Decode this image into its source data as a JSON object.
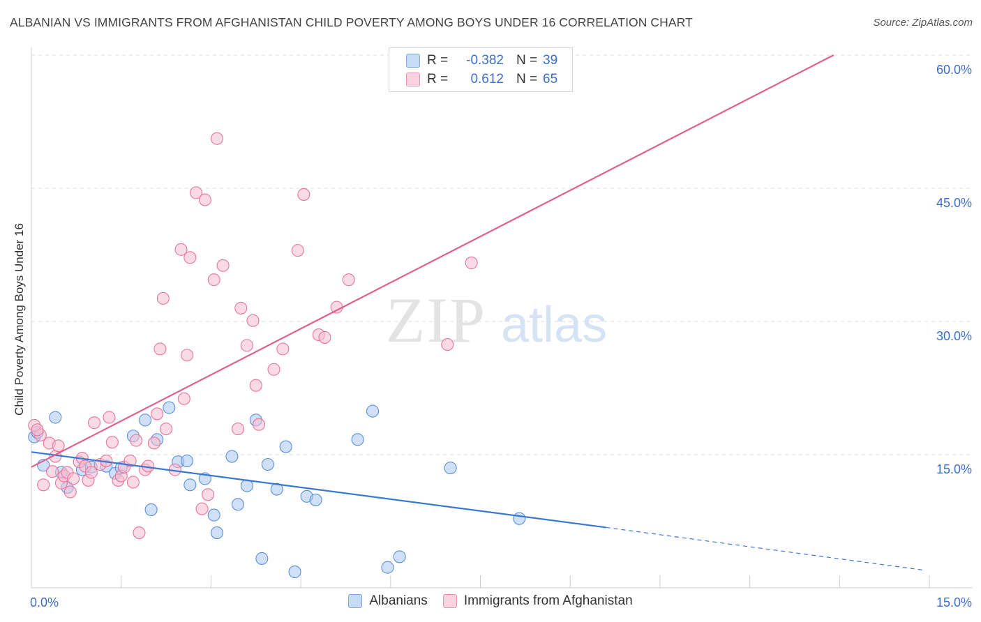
{
  "title": "ALBANIAN VS IMMIGRANTS FROM AFGHANISTAN CHILD POVERTY AMONG BOYS UNDER 16 CORRELATION CHART",
  "source": "Source: ZipAtlas.com",
  "watermark": {
    "zip": "ZIP",
    "atlas": "atlas"
  },
  "stats": [
    {
      "r_label": "R =",
      "r_value": "-0.382",
      "n_label": "N =",
      "n_value": "39",
      "color": "#a9c8f0"
    },
    {
      "r_label": "R =",
      "r_value": "0.612",
      "n_label": "N =",
      "n_value": "65",
      "color": "#f6bcd0"
    }
  ],
  "chart_data": {
    "type": "scatter",
    "title": "ALBANIAN VS IMMIGRANTS FROM AFGHANISTAN CHILD POVERTY AMONG BOYS UNDER 16 CORRELATION CHART",
    "xlabel": "",
    "ylabel": "Child Poverty Among Boys Under 16",
    "xlim": [
      0,
      15
    ],
    "ylim": [
      0,
      60
    ],
    "x_tick_labels": [
      "0.0%",
      "15.0%"
    ],
    "y_ticks": [
      15,
      30,
      45,
      60
    ],
    "y_tick_labels": [
      "15.0%",
      "30.0%",
      "45.0%",
      "60.0%"
    ],
    "grid": true,
    "legend": [
      "Albanians",
      "Immigrants from Afghanistan"
    ],
    "series": [
      {
        "name": "Albanians",
        "color": "#5b8fd8",
        "fill": "#a9c8f0",
        "trend": {
          "x0": 0,
          "y0": 15.3,
          "x1": 9.6,
          "y1": 6.8,
          "dash_to_x": 14.9,
          "dash_to_y": 2.0,
          "color": "#3a78d0"
        },
        "points": [
          [
            0.05,
            17.0
          ],
          [
            0.4,
            19.2
          ],
          [
            0.2,
            13.8
          ],
          [
            0.5,
            13.0
          ],
          [
            0.85,
            13.3
          ],
          [
            0.6,
            11.3
          ],
          [
            1.0,
            13.6
          ],
          [
            1.25,
            13.7
          ],
          [
            1.4,
            12.9
          ],
          [
            1.5,
            13.5
          ],
          [
            1.7,
            17.1
          ],
          [
            1.9,
            18.9
          ],
          [
            2.0,
            8.8
          ],
          [
            2.1,
            16.7
          ],
          [
            2.3,
            20.3
          ],
          [
            2.45,
            14.2
          ],
          [
            2.6,
            14.3
          ],
          [
            2.65,
            11.6
          ],
          [
            2.9,
            12.3
          ],
          [
            3.05,
            8.2
          ],
          [
            3.1,
            6.2
          ],
          [
            3.35,
            14.8
          ],
          [
            3.45,
            9.4
          ],
          [
            3.6,
            11.5
          ],
          [
            3.75,
            18.9
          ],
          [
            3.85,
            3.3
          ],
          [
            3.95,
            13.9
          ],
          [
            4.1,
            11.1
          ],
          [
            4.25,
            15.9
          ],
          [
            4.4,
            1.8
          ],
          [
            4.6,
            10.3
          ],
          [
            4.75,
            9.9
          ],
          [
            5.45,
            16.7
          ],
          [
            5.7,
            19.9
          ],
          [
            5.95,
            2.3
          ],
          [
            6.15,
            3.5
          ],
          [
            7.0,
            13.5
          ],
          [
            8.15,
            7.8
          ],
          [
            0.1,
            17.5
          ]
        ]
      },
      {
        "name": "Immigrants from Afghanistan",
        "color": "#e8759c",
        "fill": "#f6bcd0",
        "trend": {
          "x0": 0,
          "y0": 13.6,
          "x1": 13.4,
          "y1": 60.0,
          "color": "#e0608d"
        },
        "points": [
          [
            0.05,
            18.3
          ],
          [
            0.15,
            17.2
          ],
          [
            0.2,
            11.6
          ],
          [
            0.3,
            16.3
          ],
          [
            0.35,
            13.1
          ],
          [
            0.4,
            14.8
          ],
          [
            0.45,
            16.0
          ],
          [
            0.5,
            11.8
          ],
          [
            0.55,
            12.6
          ],
          [
            0.6,
            13.0
          ],
          [
            0.65,
            10.8
          ],
          [
            0.7,
            12.3
          ],
          [
            0.8,
            14.2
          ],
          [
            0.85,
            14.6
          ],
          [
            0.9,
            13.7
          ],
          [
            0.95,
            12.1
          ],
          [
            1.0,
            13.0
          ],
          [
            1.05,
            18.6
          ],
          [
            1.15,
            13.9
          ],
          [
            1.25,
            14.3
          ],
          [
            1.3,
            19.2
          ],
          [
            1.35,
            16.4
          ],
          [
            1.45,
            12.1
          ],
          [
            1.5,
            12.6
          ],
          [
            1.55,
            13.6
          ],
          [
            1.65,
            14.3
          ],
          [
            1.7,
            11.9
          ],
          [
            1.75,
            16.6
          ],
          [
            1.8,
            6.2
          ],
          [
            1.9,
            13.3
          ],
          [
            1.95,
            13.7
          ],
          [
            2.05,
            16.3
          ],
          [
            2.1,
            19.6
          ],
          [
            2.15,
            26.9
          ],
          [
            2.2,
            32.6
          ],
          [
            2.25,
            17.9
          ],
          [
            2.4,
            13.3
          ],
          [
            2.5,
            38.1
          ],
          [
            2.55,
            21.3
          ],
          [
            2.6,
            26.2
          ],
          [
            2.65,
            37.2
          ],
          [
            2.75,
            44.5
          ],
          [
            2.85,
            8.9
          ],
          [
            2.9,
            43.7
          ],
          [
            2.95,
            10.5
          ],
          [
            3.05,
            34.7
          ],
          [
            3.1,
            50.6
          ],
          [
            3.2,
            36.3
          ],
          [
            3.45,
            17.9
          ],
          [
            3.5,
            31.5
          ],
          [
            3.6,
            27.3
          ],
          [
            3.7,
            30.1
          ],
          [
            3.75,
            22.8
          ],
          [
            3.8,
            18.4
          ],
          [
            4.05,
            24.6
          ],
          [
            4.2,
            26.9
          ],
          [
            4.45,
            38.0
          ],
          [
            4.55,
            44.3
          ],
          [
            4.8,
            28.5
          ],
          [
            4.9,
            28.2
          ],
          [
            5.1,
            31.6
          ],
          [
            5.3,
            34.7
          ],
          [
            6.95,
            27.4
          ],
          [
            7.35,
            36.6
          ],
          [
            0.1,
            17.8
          ]
        ]
      }
    ]
  }
}
